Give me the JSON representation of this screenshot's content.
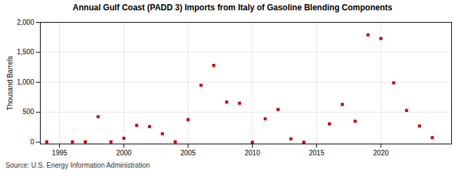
{
  "chart_data": {
    "type": "scatter",
    "title": "Annual Gulf Coast (PADD 3) Imports from Italy of Gasoline Blending Components",
    "ylabel": "Thousand Barrels",
    "caption": "Source: U.S. Energy Information Administration",
    "x": [
      1994,
      1996,
      1997,
      1998,
      1999,
      2000,
      2001,
      2002,
      2003,
      2004,
      2005,
      2006,
      2007,
      2008,
      2009,
      2010,
      2011,
      2012,
      2013,
      2014,
      2016,
      2017,
      2018,
      2019,
      2020,
      2021,
      2022,
      2023,
      2024
    ],
    "values": [
      5,
      5,
      5,
      425,
      5,
      65,
      280,
      260,
      140,
      5,
      375,
      950,
      1280,
      670,
      650,
      0,
      390,
      545,
      55,
      0,
      305,
      630,
      350,
      1790,
      1730,
      990,
      530,
      270,
      75
    ],
    "color": "#cc0000",
    "marker": "square",
    "xlim": [
      1993.5,
      2025.5
    ],
    "ylim": [
      -30,
      2000
    ],
    "xticks": [
      1995,
      2000,
      2005,
      2010,
      2015,
      2020
    ],
    "yticks": [
      0,
      500,
      {
        "value": 1000,
        "label": "1,000"
      },
      {
        "value": 1500,
        "label": "1,500"
      },
      {
        "value": 2000,
        "label": "2,000"
      }
    ],
    "grid": true
  }
}
